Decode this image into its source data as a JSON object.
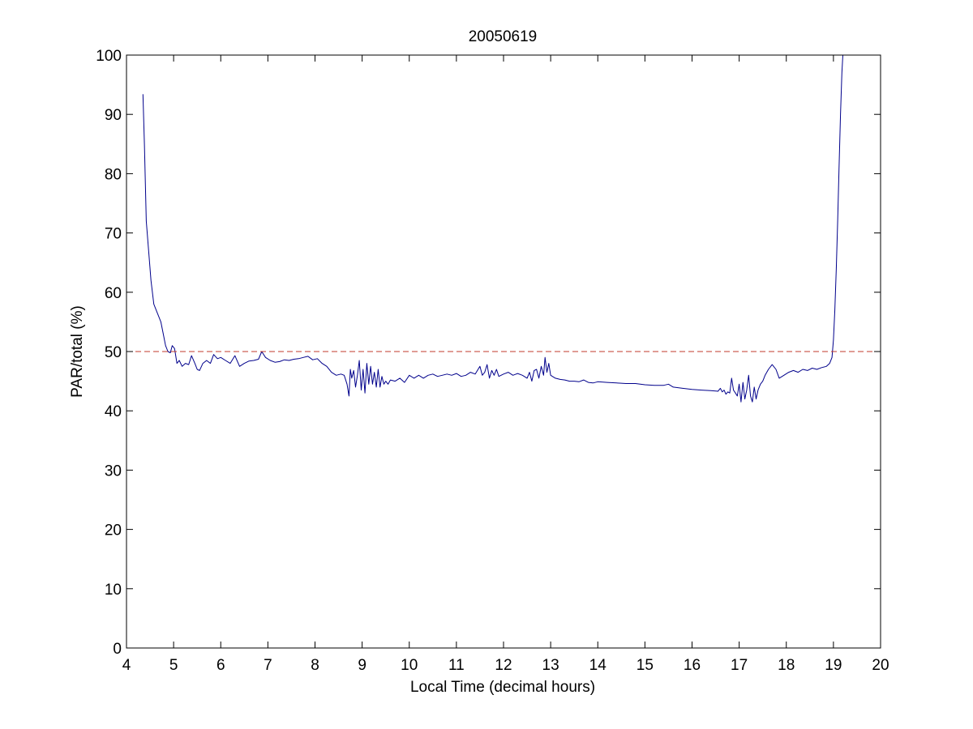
{
  "chart_data": {
    "type": "line",
    "title": "20050619",
    "xlabel": "Local Time (decimal hours)",
    "ylabel": "PAR/total (%)",
    "xlim": [
      4,
      20
    ],
    "ylim": [
      0,
      100
    ],
    "xticks": [
      4,
      5,
      6,
      7,
      8,
      9,
      10,
      11,
      12,
      13,
      14,
      15,
      16,
      17,
      18,
      19,
      20
    ],
    "yticks": [
      0,
      10,
      20,
      30,
      40,
      50,
      60,
      70,
      80,
      90,
      100
    ],
    "grid": false,
    "box": true,
    "series": [
      {
        "color": "#00008b",
        "style": "solid",
        "x": [
          4.35,
          4.38,
          4.42,
          4.47,
          4.52,
          4.58,
          4.63,
          4.68,
          4.73,
          4.78,
          4.83,
          4.88,
          4.93,
          4.97,
          5.02,
          5.07,
          5.12,
          5.18,
          5.25,
          5.32,
          5.38,
          5.45,
          5.5,
          5.55,
          5.62,
          5.7,
          5.78,
          5.85,
          5.93,
          6.0,
          6.1,
          6.2,
          6.3,
          6.4,
          6.5,
          6.6,
          6.7,
          6.8,
          6.87,
          6.95,
          7.05,
          7.15,
          7.25,
          7.35,
          7.45,
          7.55,
          7.65,
          7.75,
          7.85,
          7.95,
          8.05,
          8.15,
          8.25,
          8.35,
          8.45,
          8.55,
          8.62,
          8.68,
          8.72,
          8.75,
          8.78,
          8.82,
          8.86,
          8.9,
          8.94,
          8.98,
          9.02,
          9.06,
          9.1,
          9.14,
          9.18,
          9.22,
          9.26,
          9.3,
          9.34,
          9.38,
          9.42,
          9.46,
          9.5,
          9.55,
          9.6,
          9.7,
          9.8,
          9.9,
          10.0,
          10.1,
          10.2,
          10.3,
          10.4,
          10.5,
          10.6,
          10.7,
          10.8,
          10.9,
          11.0,
          11.1,
          11.2,
          11.3,
          11.4,
          11.5,
          11.55,
          11.6,
          11.65,
          11.7,
          11.75,
          11.8,
          11.85,
          11.9,
          12.0,
          12.1,
          12.2,
          12.3,
          12.4,
          12.5,
          12.55,
          12.6,
          12.65,
          12.7,
          12.75,
          12.8,
          12.85,
          12.88,
          12.92,
          12.96,
          13.0,
          13.1,
          13.2,
          13.3,
          13.4,
          13.5,
          13.6,
          13.7,
          13.8,
          13.9,
          14.0,
          14.2,
          14.4,
          14.6,
          14.8,
          15.0,
          15.2,
          15.4,
          15.5,
          15.6,
          15.8,
          16.0,
          16.2,
          16.4,
          16.55,
          16.6,
          16.64,
          16.68,
          16.72,
          16.76,
          16.8,
          16.84,
          16.88,
          16.92,
          16.96,
          17.0,
          17.04,
          17.08,
          17.12,
          17.16,
          17.2,
          17.24,
          17.28,
          17.32,
          17.36,
          17.4,
          17.45,
          17.5,
          17.55,
          17.62,
          17.7,
          17.78,
          17.85,
          17.95,
          18.05,
          18.15,
          18.25,
          18.35,
          18.45,
          18.55,
          18.65,
          18.75,
          18.85,
          18.92,
          18.97,
          19.0,
          19.03,
          19.06,
          19.09,
          19.12,
          19.15,
          19.18,
          19.2
        ],
        "y": [
          93.4,
          85.0,
          72.0,
          67.0,
          62.0,
          58.0,
          57.0,
          56.0,
          55.0,
          53.0,
          51.0,
          50.0,
          49.8,
          51.0,
          50.5,
          48.0,
          48.5,
          47.5,
          48.0,
          47.8,
          49.3,
          48.0,
          47.0,
          46.8,
          48.0,
          48.5,
          48.0,
          49.5,
          48.8,
          49.0,
          48.5,
          48.0,
          49.3,
          47.5,
          48.0,
          48.4,
          48.5,
          48.7,
          50.0,
          49.0,
          48.5,
          48.2,
          48.3,
          48.6,
          48.5,
          48.7,
          48.8,
          49.0,
          49.2,
          48.6,
          48.8,
          48.0,
          47.5,
          46.5,
          46.0,
          46.2,
          46.0,
          44.5,
          42.5,
          47.0,
          45.5,
          46.8,
          44.0,
          46.0,
          48.5,
          43.5,
          47.0,
          43.0,
          48.0,
          44.5,
          47.5,
          44.5,
          46.5,
          44.0,
          47.0,
          44.0,
          45.8,
          44.5,
          45.0,
          44.5,
          45.2,
          45.0,
          45.5,
          44.8,
          46.0,
          45.5,
          46.0,
          45.5,
          46.0,
          46.2,
          45.8,
          46.0,
          46.2,
          46.0,
          46.3,
          45.8,
          46.0,
          46.5,
          46.2,
          47.5,
          46.0,
          46.5,
          47.8,
          45.5,
          46.8,
          46.0,
          47.0,
          45.8,
          46.2,
          46.5,
          46.0,
          46.3,
          46.0,
          45.5,
          46.5,
          45.0,
          46.8,
          47.0,
          45.5,
          47.5,
          46.0,
          49.0,
          46.5,
          48.0,
          46.0,
          45.5,
          45.3,
          45.2,
          45.0,
          45.0,
          44.9,
          45.2,
          44.8,
          44.7,
          44.9,
          44.8,
          44.7,
          44.6,
          44.6,
          44.4,
          44.3,
          44.3,
          44.5,
          44.0,
          43.8,
          43.6,
          43.5,
          43.4,
          43.3,
          43.8,
          43.2,
          43.5,
          42.8,
          43.2,
          43.0,
          45.5,
          43.5,
          43.0,
          42.5,
          44.5,
          41.5,
          44.8,
          42.0,
          43.5,
          46.0,
          42.5,
          41.5,
          44.0,
          42.0,
          43.5,
          44.5,
          45.0,
          46.0,
          47.0,
          47.8,
          47.0,
          45.5,
          46.0,
          46.5,
          46.8,
          46.5,
          47.0,
          46.8,
          47.2,
          47.0,
          47.3,
          47.5,
          48.0,
          49.0,
          52.0,
          57.0,
          64.0,
          72.0,
          81.0,
          90.0,
          97.0,
          100.0
        ]
      },
      {
        "color": "#c0392b",
        "style": "dashed",
        "x": [
          4,
          20
        ],
        "y": [
          50,
          50
        ]
      }
    ]
  }
}
